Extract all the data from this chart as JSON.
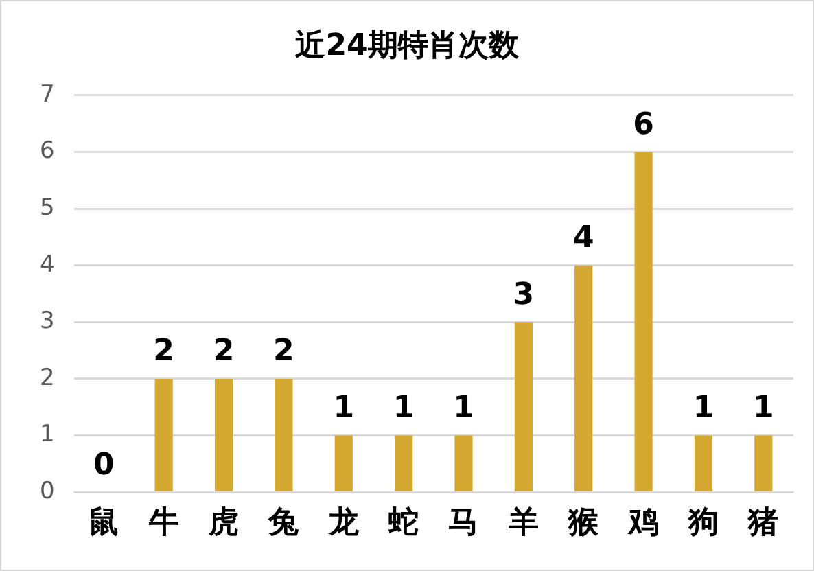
{
  "chart_data": {
    "type": "bar",
    "title": "近24期特肖次数",
    "categories": [
      "鼠",
      "牛",
      "虎",
      "兔",
      "龙",
      "蛇",
      "马",
      "羊",
      "猴",
      "鸡",
      "狗",
      "猪"
    ],
    "values": [
      0,
      2,
      2,
      2,
      1,
      1,
      1,
      3,
      4,
      6,
      1,
      1
    ],
    "color": "#d4a831",
    "ylim": [
      0,
      7
    ],
    "yticks": [
      0,
      1,
      2,
      3,
      4,
      5,
      6,
      7
    ],
    "grid": "y",
    "data_labels": true,
    "legend": false
  }
}
